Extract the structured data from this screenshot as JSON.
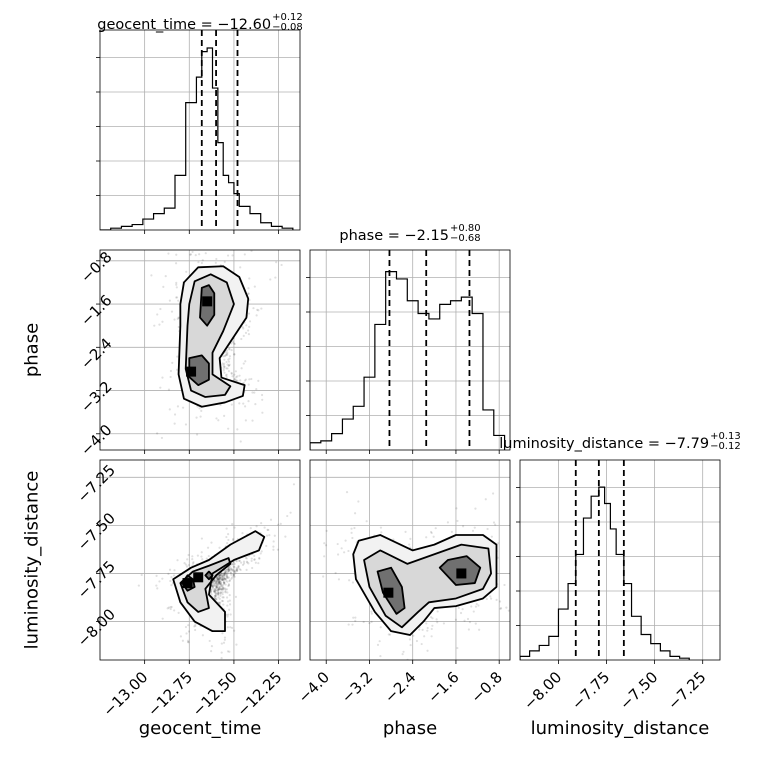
{
  "chart_data": {
    "type": "corner",
    "parameters": [
      "geocent_time",
      "phase",
      "luminosity_distance"
    ],
    "titles": [
      {
        "label": "geocent_time",
        "median": "−12.60",
        "plus": "+0.12",
        "minus": "−0.08"
      },
      {
        "label": "phase",
        "median": "−2.15",
        "plus": "+0.80",
        "minus": "−0.68"
      },
      {
        "label": "luminosity_distance",
        "median": "−7.79",
        "plus": "+0.13",
        "minus": "−0.12"
      }
    ],
    "ranges": {
      "geocent_time": [
        -13.25,
        -12.13
      ],
      "phase": [
        -4.3,
        -0.6
      ],
      "luminosity_distance": [
        -8.2,
        -7.16
      ]
    },
    "ticks": {
      "geocent_time": [
        "−13.00",
        "−12.75",
        "−12.50",
        "−12.25"
      ],
      "phase": [
        "−4.0",
        "−3.2",
        "−2.4",
        "−1.6",
        "−0.8"
      ],
      "luminosity_distance": [
        "−8.00",
        "−7.75",
        "−7.50",
        "−7.25"
      ]
    },
    "tick_values": {
      "geocent_time": [
        -13.0,
        -12.75,
        -12.5,
        -12.25
      ],
      "phase": [
        -4.0,
        -3.2,
        -2.4,
        -1.6,
        -0.8
      ],
      "luminosity_distance": [
        -8.0,
        -7.75,
        -7.5,
        -7.25
      ]
    },
    "quantile_lines": {
      "geocent_time": [
        -12.68,
        -12.6,
        -12.48
      ],
      "phase": [
        -2.83,
        -2.15,
        -1.35
      ],
      "luminosity_distance": [
        -7.91,
        -7.79,
        -7.66
      ]
    },
    "histograms": {
      "geocent_time": {
        "edges": [
          -13.25,
          -13.19,
          -13.13,
          -13.07,
          -13.01,
          -12.95,
          -12.89,
          -12.83,
          -12.77,
          -12.71,
          -12.68,
          -12.65,
          -12.62,
          -12.59,
          -12.56,
          -12.53,
          -12.5,
          -12.47,
          -12.41,
          -12.35,
          -12.29,
          -12.23,
          -12.17
        ],
        "counts": [
          0.0,
          0.01,
          0.02,
          0.03,
          0.06,
          0.09,
          0.12,
          0.3,
          0.7,
          0.84,
          0.98,
          1.0,
          0.78,
          0.48,
          0.3,
          0.26,
          0.2,
          0.13,
          0.09,
          0.04,
          0.02,
          0.01
        ]
      },
      "phase": {
        "edges": [
          -4.3,
          -4.1,
          -3.9,
          -3.7,
          -3.5,
          -3.3,
          -3.1,
          -2.9,
          -2.7,
          -2.5,
          -2.3,
          -2.1,
          -1.9,
          -1.7,
          -1.5,
          -1.3,
          -1.1,
          -0.9,
          -0.7
        ],
        "counts": [
          0.04,
          0.05,
          0.09,
          0.17,
          0.24,
          0.4,
          0.69,
          0.98,
          0.94,
          0.82,
          0.75,
          0.72,
          0.8,
          0.82,
          0.84,
          0.75,
          0.22,
          0.08
        ]
      },
      "luminosity_distance": {
        "edges": [
          -8.2,
          -8.15,
          -8.1,
          -8.05,
          -8.0,
          -7.95,
          -7.91,
          -7.87,
          -7.83,
          -7.79,
          -7.76,
          -7.73,
          -7.7,
          -7.66,
          -7.62,
          -7.57,
          -7.52,
          -7.47,
          -7.42,
          -7.37,
          -7.32
        ],
        "counts": [
          0.02,
          0.05,
          0.08,
          0.13,
          0.28,
          0.42,
          0.58,
          0.78,
          0.9,
          0.95,
          0.86,
          0.72,
          0.58,
          0.42,
          0.24,
          0.14,
          0.09,
          0.05,
          0.02,
          0.01
        ]
      }
    },
    "contours_2d": {
      "phase_vs_geocent_time": [
        {
          "level": 0.98,
          "points": [
            [
              -12.8,
              -2.0
            ],
            [
              -12.81,
              -2.9
            ],
            [
              -12.78,
              -3.35
            ],
            [
              -12.68,
              -3.5
            ],
            [
              -12.55,
              -3.42
            ],
            [
              -12.45,
              -3.3
            ],
            [
              -12.44,
              -3.1
            ],
            [
              -12.57,
              -2.96
            ],
            [
              -12.58,
              -2.6
            ],
            [
              -12.5,
              -2.2
            ],
            [
              -12.43,
              -1.85
            ],
            [
              -12.42,
              -1.5
            ],
            [
              -12.47,
              -1.1
            ],
            [
              -12.56,
              -0.9
            ],
            [
              -12.7,
              -0.92
            ],
            [
              -12.78,
              -1.2
            ],
            [
              -12.8,
              -1.6
            ]
          ]
        },
        {
          "level": 0.86,
          "points": [
            [
              -12.76,
              -2.0
            ],
            [
              -12.77,
              -2.8
            ],
            [
              -12.74,
              -3.2
            ],
            [
              -12.66,
              -3.32
            ],
            [
              -12.55,
              -3.28
            ],
            [
              -12.52,
              -3.12
            ],
            [
              -12.62,
              -2.9
            ],
            [
              -12.62,
              -2.5
            ],
            [
              -12.56,
              -2.1
            ],
            [
              -12.5,
              -1.6
            ],
            [
              -12.54,
              -1.2
            ],
            [
              -12.63,
              -1.05
            ],
            [
              -12.72,
              -1.18
            ],
            [
              -12.75,
              -1.6
            ]
          ]
        },
        {
          "level": 0.39,
          "points": [
            [
              -12.75,
              -2.6
            ],
            [
              -12.75,
              -2.95
            ],
            [
              -12.7,
              -3.1
            ],
            [
              -12.64,
              -3.0
            ],
            [
              -12.64,
              -2.7
            ],
            [
              -12.68,
              -2.55
            ]
          ]
        },
        {
          "level": 0.39,
          "points": [
            [
              -12.68,
              -1.3
            ],
            [
              -12.69,
              -1.85
            ],
            [
              -12.65,
              -2.0
            ],
            [
              -12.61,
              -1.8
            ],
            [
              -12.61,
              -1.4
            ],
            [
              -12.64,
              -1.25
            ]
          ]
        }
      ],
      "luminosity_distance_vs_geocent_time": [
        {
          "level": 0.98,
          "points": [
            [
              -12.84,
              -7.78
            ],
            [
              -12.8,
              -7.9
            ],
            [
              -12.72,
              -8.0
            ],
            [
              -12.62,
              -8.05
            ],
            [
              -12.55,
              -8.05
            ],
            [
              -12.55,
              -7.95
            ],
            [
              -12.64,
              -7.86
            ],
            [
              -12.62,
              -7.75
            ],
            [
              -12.5,
              -7.68
            ],
            [
              -12.36,
              -7.63
            ],
            [
              -12.33,
              -7.56
            ],
            [
              -12.38,
              -7.53
            ],
            [
              -12.52,
              -7.6
            ],
            [
              -12.64,
              -7.68
            ],
            [
              -12.74,
              -7.72
            ]
          ]
        },
        {
          "level": 0.86,
          "points": [
            [
              -12.8,
              -7.8
            ],
            [
              -12.76,
              -7.9
            ],
            [
              -12.7,
              -7.95
            ],
            [
              -12.64,
              -7.93
            ],
            [
              -12.66,
              -7.83
            ],
            [
              -12.6,
              -7.76
            ],
            [
              -12.52,
              -7.7
            ],
            [
              -12.53,
              -7.67
            ],
            [
              -12.64,
              -7.71
            ],
            [
              -12.73,
              -7.74
            ]
          ]
        },
        {
          "level": 0.39,
          "points": [
            [
              -12.79,
              -7.8
            ],
            [
              -12.76,
              -7.84
            ],
            [
              -12.72,
              -7.82
            ],
            [
              -12.73,
              -7.78
            ],
            [
              -12.76,
              -7.76
            ]
          ]
        },
        {
          "level": 0.39,
          "points": [
            [
              -12.66,
              -7.76
            ],
            [
              -12.64,
              -7.78
            ],
            [
              -12.62,
              -7.76
            ],
            [
              -12.64,
              -7.74
            ]
          ]
        }
      ],
      "luminosity_distance_vs_phase": [
        {
          "level": 0.98,
          "points": [
            [
              -3.5,
              -7.65
            ],
            [
              -3.45,
              -7.78
            ],
            [
              -3.1,
              -7.95
            ],
            [
              -2.8,
              -8.05
            ],
            [
              -2.45,
              -8.07
            ],
            [
              -2.2,
              -8.0
            ],
            [
              -2.0,
              -7.93
            ],
            [
              -1.6,
              -7.92
            ],
            [
              -1.1,
              -7.88
            ],
            [
              -0.85,
              -7.82
            ],
            [
              -0.85,
              -7.6
            ],
            [
              -1.1,
              -7.55
            ],
            [
              -1.6,
              -7.55
            ],
            [
              -2.0,
              -7.6
            ],
            [
              -2.4,
              -7.63
            ],
            [
              -3.0,
              -7.55
            ],
            [
              -3.4,
              -7.58
            ]
          ]
        },
        {
          "level": 0.86,
          "points": [
            [
              -3.3,
              -7.68
            ],
            [
              -3.2,
              -7.82
            ],
            [
              -2.9,
              -7.97
            ],
            [
              -2.6,
              -8.03
            ],
            [
              -2.3,
              -7.95
            ],
            [
              -2.1,
              -7.9
            ],
            [
              -1.6,
              -7.88
            ],
            [
              -1.1,
              -7.83
            ],
            [
              -0.95,
              -7.75
            ],
            [
              -1.0,
              -7.62
            ],
            [
              -1.5,
              -7.6
            ],
            [
              -2.0,
              -7.65
            ],
            [
              -2.5,
              -7.7
            ],
            [
              -3.0,
              -7.63
            ]
          ]
        },
        {
          "level": 0.39,
          "points": [
            [
              -3.05,
              -7.74
            ],
            [
              -2.95,
              -7.85
            ],
            [
              -2.7,
              -7.96
            ],
            [
              -2.55,
              -7.93
            ],
            [
              -2.6,
              -7.82
            ],
            [
              -2.8,
              -7.72
            ]
          ]
        },
        {
          "level": 0.39,
          "points": [
            [
              -1.9,
              -7.72
            ],
            [
              -1.6,
              -7.81
            ],
            [
              -1.25,
              -7.8
            ],
            [
              -1.15,
              -7.72
            ],
            [
              -1.4,
              -7.66
            ],
            [
              -1.75,
              -7.68
            ]
          ]
        }
      ]
    },
    "density_peaks": [
      {
        "pair": "phase_vs_geocent_time",
        "x": -12.74,
        "y": -2.85
      },
      {
        "pair": "phase_vs_geocent_time",
        "x": -12.65,
        "y": -1.55
      },
      {
        "pair": "luminosity_distance_vs_geocent_time",
        "x": -12.76,
        "y": -7.8
      },
      {
        "pair": "luminosity_distance_vs_geocent_time",
        "x": -12.7,
        "y": -7.77
      },
      {
        "pair": "luminosity_distance_vs_phase",
        "x": -2.85,
        "y": -7.85
      },
      {
        "pair": "luminosity_distance_vs_phase",
        "x": -1.5,
        "y": -7.75
      }
    ],
    "grid": true
  }
}
